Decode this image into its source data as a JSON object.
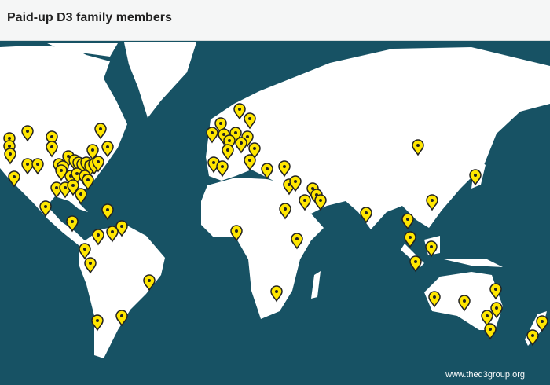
{
  "header": {
    "title": "Paid-up D3 family members"
  },
  "footer": {
    "credit": "www.thed3group.org"
  },
  "colors": {
    "ocean": "#175264",
    "land": "#ffffff",
    "marker": "#ffe600",
    "marker_outline": "#222222",
    "header_bg": "#f5f6f6"
  },
  "marker_icon": "map-pin-icon"
}
